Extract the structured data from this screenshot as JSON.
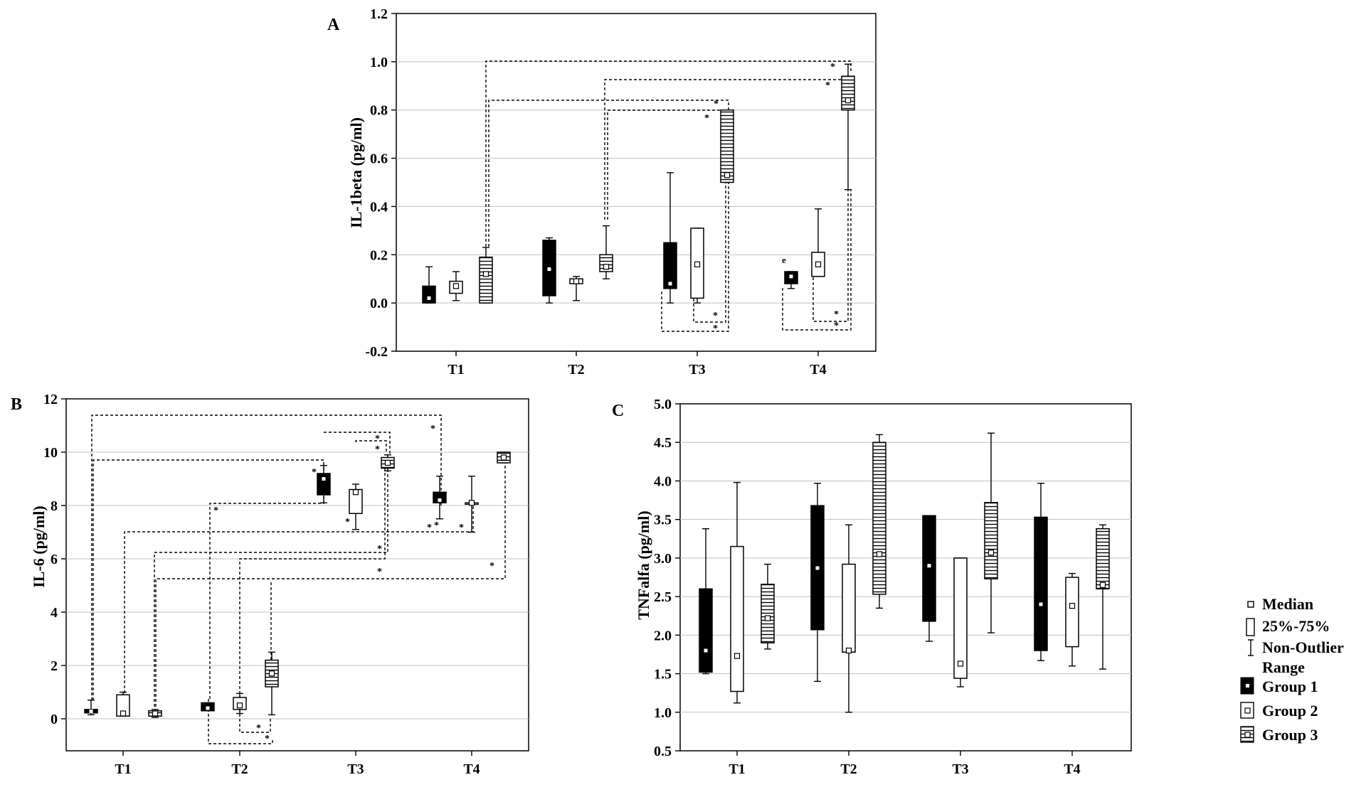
{
  "figure": {
    "legend": {
      "items": [
        {
          "label": "Median",
          "icon": "median-marker-icon"
        },
        {
          "label": "25%-75%",
          "icon": "iqr-box-icon"
        },
        {
          "label": "Non-Outlier",
          "icon": "whisker-range-icon"
        },
        {
          "label": "Range",
          "icon": ""
        },
        {
          "label": "Group 1",
          "icon": "group1-black-box-icon"
        },
        {
          "label": "Group 2",
          "icon": "group2-white-box-icon"
        },
        {
          "label": "Group 3",
          "icon": "group3-hatched-box-icon"
        }
      ]
    },
    "colors": {
      "group1": "#000000",
      "group2": "#ffffff",
      "group3_hatch": "#000000",
      "grid": "#c0c0c0",
      "frame": "#000000"
    }
  },
  "chart_data": [
    {
      "panel": "A",
      "type": "boxplot",
      "title": "",
      "xlabel": "",
      "ylabel": "IL-1beta (pg/ml)",
      "categories": [
        "T1",
        "T2",
        "T3",
        "T4"
      ],
      "ylim": [
        -0.2,
        1.2
      ],
      "yticks": [
        "-0.2",
        "0.0",
        "0.2",
        "0.4",
        "0.6",
        "0.8",
        "1.0",
        "1.2"
      ],
      "grid": true,
      "series": [
        {
          "group": 1,
          "boxes": [
            {
              "x": "T1",
              "min": 0.0,
              "q1": 0.0,
              "median": 0.02,
              "q3": 0.07,
              "max": 0.15
            },
            {
              "x": "T2",
              "min": 0.0,
              "q1": 0.03,
              "median": 0.14,
              "q3": 0.26,
              "max": 0.27
            },
            {
              "x": "T3",
              "min": 0.0,
              "q1": 0.06,
              "median": 0.08,
              "q3": 0.25,
              "max": 0.54
            },
            {
              "x": "T4",
              "min": 0.06,
              "q1": 0.08,
              "median": 0.11,
              "q3": 0.13,
              "max": 0.13
            }
          ]
        },
        {
          "group": 2,
          "boxes": [
            {
              "x": "T1",
              "min": 0.01,
              "q1": 0.04,
              "median": 0.07,
              "q3": 0.09,
              "max": 0.13
            },
            {
              "x": "T2",
              "min": 0.01,
              "q1": 0.08,
              "median": 0.09,
              "q3": 0.1,
              "max": 0.11
            },
            {
              "x": "T3",
              "min": 0.0,
              "q1": 0.02,
              "median": 0.16,
              "q3": 0.31,
              "max": 0.31
            },
            {
              "x": "T4",
              "min": 0.11,
              "q1": 0.11,
              "median": 0.16,
              "q3": 0.21,
              "max": 0.39
            }
          ]
        },
        {
          "group": 3,
          "boxes": [
            {
              "x": "T1",
              "min": 0.0,
              "q1": 0.0,
              "median": 0.12,
              "q3": 0.19,
              "max": 0.23
            },
            {
              "x": "T2",
              "min": 0.1,
              "q1": 0.13,
              "median": 0.15,
              "q3": 0.2,
              "max": 0.32
            },
            {
              "x": "T3",
              "min": 0.5,
              "q1": 0.5,
              "median": 0.53,
              "q3": 0.8,
              "max": 0.8
            },
            {
              "x": "T4",
              "min": 0.47,
              "q1": 0.8,
              "median": 0.84,
              "q3": 0.94,
              "max": 0.99
            }
          ]
        }
      ],
      "annotations": [
        "*",
        "*",
        "*",
        "*",
        "*",
        "*",
        "*",
        "*",
        "e"
      ]
    },
    {
      "panel": "B",
      "type": "boxplot",
      "title": "",
      "xlabel": "",
      "ylabel": "IL-6 (pg/ml)",
      "categories": [
        "T1",
        "T2",
        "T3",
        "T4"
      ],
      "ylim": [
        -1.2,
        12
      ],
      "yticks": [
        "0",
        "2",
        "4",
        "6",
        "8",
        "10",
        "12"
      ],
      "grid": true,
      "series": [
        {
          "group": 1,
          "boxes": [
            {
              "x": "T1",
              "min": 0.15,
              "q1": 0.22,
              "median": 0.28,
              "q3": 0.35,
              "max": 0.7
            },
            {
              "x": "T2",
              "min": 0.3,
              "q1": 0.3,
              "median": 0.4,
              "q3": 0.6,
              "max": 0.6
            },
            {
              "x": "T3",
              "min": 8.1,
              "q1": 8.4,
              "median": 9.0,
              "q3": 9.2,
              "max": 9.5
            },
            {
              "x": "T4",
              "min": 7.5,
              "q1": 8.1,
              "median": 8.2,
              "q3": 8.5,
              "max": 9.1
            }
          ]
        },
        {
          "group": 2,
          "boxes": [
            {
              "x": "T1",
              "min": 0.1,
              "q1": 0.1,
              "median": 0.2,
              "q3": 0.9,
              "max": 1.0
            },
            {
              "x": "T2",
              "min": 0.2,
              "q1": 0.35,
              "median": 0.5,
              "q3": 0.8,
              "max": 0.95
            },
            {
              "x": "T3",
              "min": 7.1,
              "q1": 7.7,
              "median": 8.5,
              "q3": 8.6,
              "max": 8.8
            },
            {
              "x": "T4",
              "min": 7.0,
              "q1": 8.1,
              "median": 8.1,
              "q3": 8.1,
              "max": 9.1
            }
          ]
        },
        {
          "group": 3,
          "boxes": [
            {
              "x": "T1",
              "min": 0.05,
              "q1": 0.1,
              "median": 0.2,
              "q3": 0.3,
              "max": 0.35
            },
            {
              "x": "T2",
              "min": 0.15,
              "q1": 1.2,
              "median": 1.7,
              "q3": 2.2,
              "max": 2.5
            },
            {
              "x": "T3",
              "min": 9.3,
              "q1": 9.4,
              "median": 9.6,
              "q3": 9.8,
              "max": 9.9
            },
            {
              "x": "T4",
              "min": 9.6,
              "q1": 9.6,
              "median": 9.8,
              "q3": 10.0,
              "max": 10.0
            }
          ]
        }
      ],
      "annotations": [
        "*",
        "*",
        "*",
        "*",
        "*",
        "*",
        "*",
        "*",
        "*",
        "*",
        "*",
        "*",
        "*",
        "*"
      ]
    },
    {
      "panel": "C",
      "type": "boxplot",
      "title": "",
      "xlabel": "",
      "ylabel": "TNFalfa (pg/ml)",
      "categories": [
        "T1",
        "T2",
        "T3",
        "T4"
      ],
      "ylim": [
        0.5,
        5.0
      ],
      "yticks": [
        "0.5",
        "1.0",
        "1.5",
        "2.0",
        "2.5",
        "3.0",
        "3.5",
        "4.0",
        "4.5",
        "5.0"
      ],
      "grid": true,
      "series": [
        {
          "group": 1,
          "boxes": [
            {
              "x": "T1",
              "min": 1.5,
              "q1": 1.52,
              "median": 1.8,
              "q3": 2.6,
              "max": 3.38
            },
            {
              "x": "T2",
              "min": 1.4,
              "q1": 2.07,
              "median": 2.87,
              "q3": 3.68,
              "max": 3.97
            },
            {
              "x": "T3",
              "min": 1.92,
              "q1": 2.18,
              "median": 2.9,
              "q3": 3.55,
              "max": 3.55
            },
            {
              "x": "T4",
              "min": 1.67,
              "q1": 1.8,
              "median": 2.4,
              "q3": 3.53,
              "max": 3.97
            }
          ]
        },
        {
          "group": 2,
          "boxes": [
            {
              "x": "T1",
              "min": 1.12,
              "q1": 1.27,
              "median": 1.73,
              "q3": 3.15,
              "max": 3.98
            },
            {
              "x": "T2",
              "min": 1.0,
              "q1": 1.78,
              "median": 1.8,
              "q3": 2.92,
              "max": 3.43
            },
            {
              "x": "T3",
              "min": 1.33,
              "q1": 1.44,
              "median": 1.63,
              "q3": 3.0,
              "max": 3.0
            },
            {
              "x": "T4",
              "min": 1.6,
              "q1": 1.85,
              "median": 2.38,
              "q3": 2.75,
              "max": 2.8
            }
          ]
        },
        {
          "group": 3,
          "boxes": [
            {
              "x": "T1",
              "min": 1.82,
              "q1": 1.9,
              "median": 2.22,
              "q3": 2.66,
              "max": 2.92
            },
            {
              "x": "T2",
              "min": 2.35,
              "q1": 2.53,
              "median": 3.05,
              "q3": 4.5,
              "max": 4.6
            },
            {
              "x": "T3",
              "min": 2.03,
              "q1": 2.73,
              "median": 3.07,
              "q3": 3.72,
              "max": 4.62
            },
            {
              "x": "T4",
              "min": 1.56,
              "q1": 2.6,
              "median": 2.65,
              "q3": 3.38,
              "max": 3.43
            }
          ]
        }
      ]
    }
  ]
}
